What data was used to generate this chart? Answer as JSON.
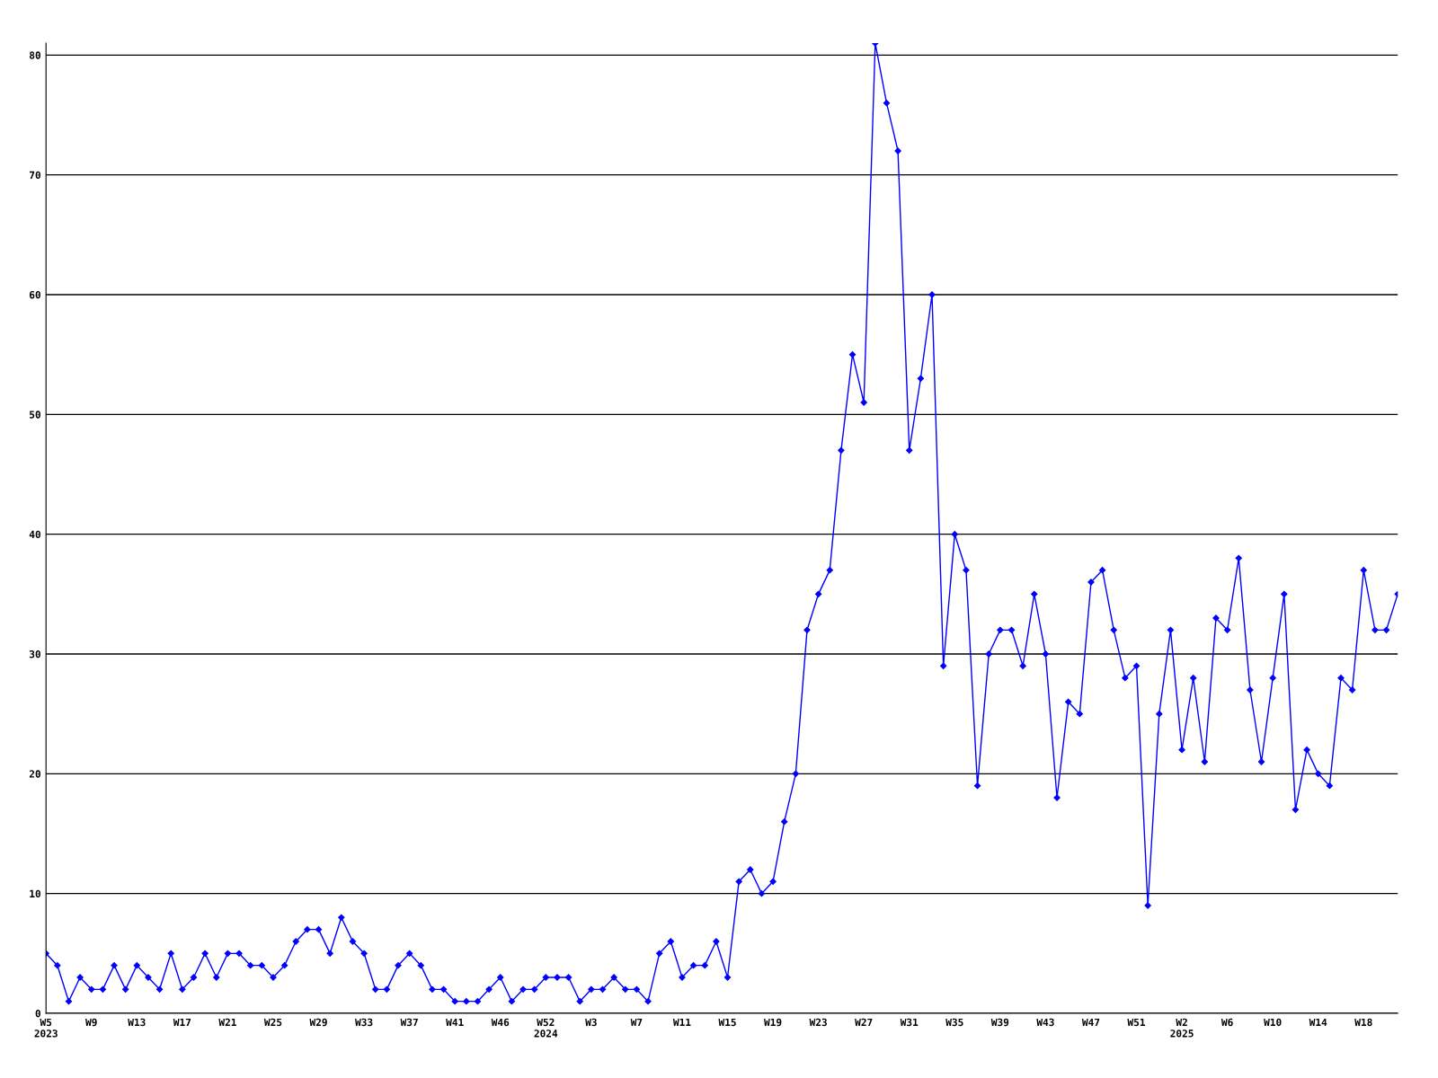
{
  "chart_data": {
    "type": "line",
    "categories": [
      "W5\n2023",
      null,
      null,
      null,
      "W9",
      null,
      null,
      null,
      "W13",
      null,
      null,
      null,
      "W17",
      null,
      null,
      null,
      "W21",
      null,
      null,
      null,
      "W25",
      null,
      null,
      null,
      "W29",
      null,
      null,
      null,
      "W33",
      null,
      null,
      null,
      "W37",
      null,
      null,
      null,
      "W41",
      null,
      null,
      null,
      "W46",
      null,
      null,
      null,
      "W52\n2024",
      null,
      null,
      null,
      "W3",
      null,
      null,
      null,
      "W7",
      null,
      null,
      null,
      "W11",
      null,
      null,
      null,
      "W15",
      null,
      null,
      null,
      "W19",
      null,
      null,
      null,
      "W23",
      null,
      null,
      null,
      "W27",
      null,
      null,
      null,
      "W31",
      null,
      null,
      null,
      "W35",
      null,
      null,
      null,
      "W39",
      null,
      null,
      null,
      "W43",
      null,
      null,
      null,
      "W47",
      null,
      null,
      null,
      "W51",
      null,
      null,
      null,
      "W2\n2025",
      null,
      null,
      null,
      "W6",
      null,
      null,
      null,
      "W10",
      null,
      null,
      null,
      "W14",
      null,
      null,
      null,
      "W18",
      null,
      null,
      null
    ],
    "series": [
      {
        "color": "#0000ff",
        "values": [
          5,
          4,
          1,
          3,
          2,
          2,
          4,
          2,
          4,
          3,
          2,
          5,
          2,
          3,
          5,
          3,
          5,
          5,
          4,
          4,
          3,
          4,
          6,
          7,
          7,
          5,
          8,
          6,
          5,
          2,
          2,
          4,
          5,
          4,
          2,
          2,
          1,
          1,
          1,
          2,
          3,
          1,
          2,
          2,
          3,
          3,
          3,
          1,
          2,
          2,
          3,
          2,
          2,
          1,
          5,
          6,
          3,
          4,
          4,
          6,
          3,
          11,
          12,
          10,
          11,
          16,
          20,
          32,
          35,
          37,
          47,
          55,
          51,
          81,
          76,
          72,
          47,
          53,
          60,
          29,
          40,
          37,
          19,
          30,
          32,
          32,
          29,
          35,
          30,
          18,
          26,
          25,
          36,
          37,
          32,
          28,
          29,
          9,
          25,
          32,
          22,
          28,
          21,
          33,
          32,
          38,
          27,
          21,
          28,
          35,
          17,
          22,
          20,
          19,
          28,
          27,
          37,
          32,
          32,
          35
        ]
      }
    ],
    "ylim": [
      0,
      81
    ],
    "yticks": [
      0,
      10,
      20,
      30,
      40,
      50,
      60,
      70,
      80
    ],
    "grid": "y",
    "marker": "diamond",
    "line_style": "solid",
    "legend": false
  }
}
